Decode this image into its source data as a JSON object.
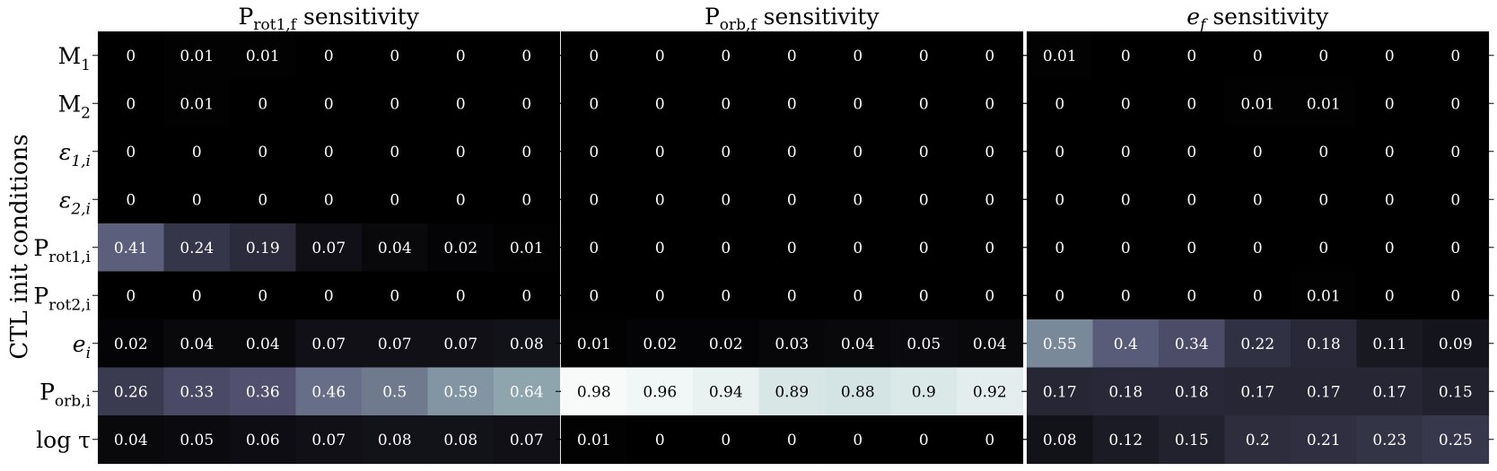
{
  "chart_data": {
    "type": "heatmap",
    "ylabel": "CTL init conditions",
    "row_labels": [
      {
        "base": "M",
        "sub": "1",
        "italic": false,
        "sub_italic": false
      },
      {
        "base": "M",
        "sub": "2",
        "italic": false,
        "sub_italic": false
      },
      {
        "base": "ε",
        "sub": "1,i",
        "italic": true,
        "sub_italic": true
      },
      {
        "base": "ε",
        "sub": "2,i",
        "italic": true,
        "sub_italic": true
      },
      {
        "base": "P",
        "sub": "rot1,i",
        "italic": false,
        "sub_italic": false
      },
      {
        "base": "P",
        "sub": "rot2,i",
        "italic": false,
        "sub_italic": false
      },
      {
        "base": "e",
        "sub": "i",
        "italic": true,
        "sub_italic": true
      },
      {
        "base": "P",
        "sub": "orb,i",
        "italic": false,
        "sub_italic": false
      },
      {
        "base": "log τ",
        "sub": "",
        "italic": false,
        "sub_italic": false
      }
    ],
    "colormap": "bone",
    "panels": [
      {
        "title": {
          "base": "P",
          "sub": "rot1,f",
          "rest": " sensitivity",
          "italic": false
        },
        "values": [
          [
            0,
            0.01,
            0.01,
            0,
            0,
            0,
            0
          ],
          [
            0,
            0.01,
            0,
            0,
            0,
            0,
            0
          ],
          [
            0,
            0,
            0,
            0,
            0,
            0,
            0
          ],
          [
            0,
            0,
            0,
            0,
            0,
            0,
            0
          ],
          [
            0.41,
            0.24,
            0.19,
            0.07,
            0.04,
            0.02,
            0.01
          ],
          [
            0,
            0,
            0,
            0,
            0,
            0,
            0
          ],
          [
            0.02,
            0.04,
            0.04,
            0.07,
            0.07,
            0.07,
            0.08
          ],
          [
            0.26,
            0.33,
            0.36,
            0.46,
            0.5,
            0.59,
            0.64
          ],
          [
            0.04,
            0.05,
            0.06,
            0.07,
            0.08,
            0.08,
            0.07
          ]
        ]
      },
      {
        "title": {
          "base": "P",
          "sub": "orb,f",
          "rest": " sensitivity",
          "italic": false
        },
        "values": [
          [
            0,
            0,
            0,
            0,
            0,
            0,
            0
          ],
          [
            0,
            0,
            0,
            0,
            0,
            0,
            0
          ],
          [
            0,
            0,
            0,
            0,
            0,
            0,
            0
          ],
          [
            0,
            0,
            0,
            0,
            0,
            0,
            0
          ],
          [
            0,
            0,
            0,
            0,
            0,
            0,
            0
          ],
          [
            0,
            0,
            0,
            0,
            0,
            0,
            0
          ],
          [
            0.01,
            0.02,
            0.02,
            0.03,
            0.04,
            0.05,
            0.04
          ],
          [
            0.98,
            0.96,
            0.94,
            0.89,
            0.88,
            0.9,
            0.92
          ],
          [
            0.01,
            0,
            0,
            0,
            0,
            0,
            0
          ]
        ]
      },
      {
        "title": {
          "base": "e",
          "sub": "f",
          "rest": " sensitivity",
          "italic": true
        },
        "values": [
          [
            0.01,
            0,
            0,
            0,
            0,
            0,
            0
          ],
          [
            0,
            0,
            0,
            0.01,
            0.01,
            0,
            0
          ],
          [
            0,
            0,
            0,
            0,
            0,
            0,
            0
          ],
          [
            0,
            0,
            0,
            0,
            0,
            0,
            0
          ],
          [
            0,
            0,
            0,
            0,
            0,
            0,
            0
          ],
          [
            0,
            0,
            0,
            0,
            0.01,
            0,
            0
          ],
          [
            0.55,
            0.4,
            0.34,
            0.22,
            0.18,
            0.11,
            0.09
          ],
          [
            0.17,
            0.18,
            0.18,
            0.17,
            0.17,
            0.17,
            0.15
          ],
          [
            0.08,
            0.12,
            0.15,
            0.2,
            0.21,
            0.23,
            0.25
          ]
        ]
      }
    ]
  }
}
